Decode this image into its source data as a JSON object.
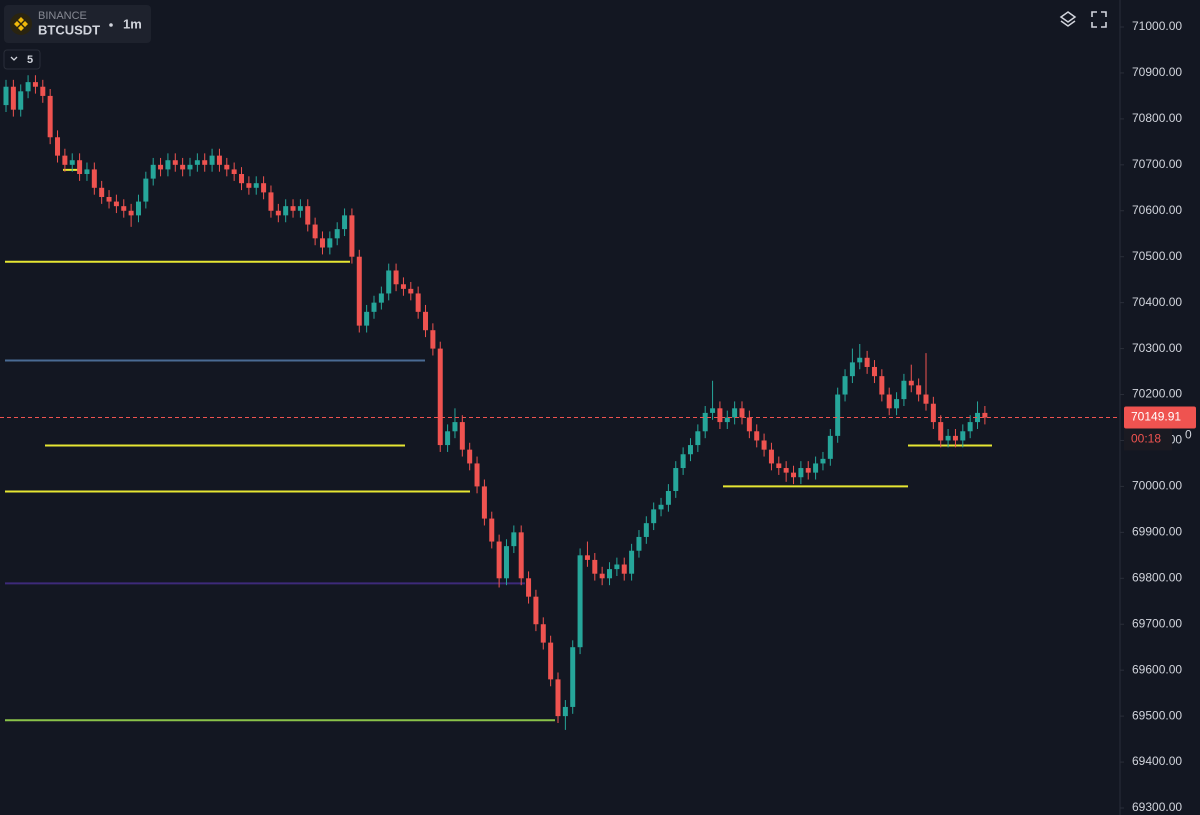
{
  "header": {
    "exchange": "BINANCE",
    "symbol": "BTCUSDT",
    "interval": "1m",
    "indicator_count": 5
  },
  "chart_data": {
    "type": "candlestick",
    "up_color": "#26a69a",
    "down_color": "#ef5350",
    "ylim": [
      69300,
      71000
    ],
    "yticks": [
      {
        "value": 71000,
        "label": "71000.00"
      },
      {
        "value": 70900,
        "label": "70900.00"
      },
      {
        "value": 70800,
        "label": "70800.00"
      },
      {
        "value": 70700,
        "label": "70700.00"
      },
      {
        "value": 70600,
        "label": "70600.00"
      },
      {
        "value": 70500,
        "label": "70500.00"
      },
      {
        "value": 70400,
        "label": "70400.00"
      },
      {
        "value": 70300,
        "label": "70300.00"
      },
      {
        "value": 70200,
        "label": "70200.00"
      },
      {
        "value": 70100,
        "label": "70100.00"
      },
      {
        "value": 70000,
        "label": "70000.00"
      },
      {
        "value": 69900,
        "label": "69900.00"
      },
      {
        "value": 69800,
        "label": "69800.00"
      },
      {
        "value": 69700,
        "label": "69700.00"
      },
      {
        "value": 69600,
        "label": "69600.00"
      },
      {
        "value": 69500,
        "label": "69500.00"
      },
      {
        "value": 69400,
        "label": "69400.00"
      },
      {
        "value": 69300,
        "label": "69300.00"
      }
    ],
    "open": [
      70830,
      70870,
      70820,
      70860,
      70880,
      70870,
      70850,
      70760,
      70720,
      70700,
      70710,
      70680,
      70690,
      70650,
      70630,
      70620,
      70610,
      70600,
      70590,
      70620,
      70670,
      70700,
      70690,
      70710,
      70700,
      70690,
      70700,
      70710,
      70700,
      70720,
      70700,
      70690,
      70680,
      70660,
      70650,
      70660,
      70640,
      70600,
      70590,
      70610,
      70600,
      70610,
      70570,
      70540,
      70520,
      70540,
      70560,
      70590,
      70500,
      70350,
      70380,
      70400,
      70420,
      70470,
      70440,
      70430,
      70420,
      70380,
      70340,
      70300,
      70090,
      70120,
      70140,
      70080,
      70050,
      70000,
      69930,
      69880,
      69800,
      69870,
      69900,
      69800,
      69760,
      69700,
      69660,
      69580,
      69500,
      69520,
      69650,
      69850,
      69840,
      69810,
      69800,
      69820,
      69830,
      69810,
      69860,
      69890,
      69920,
      69950,
      69960,
      69990,
      70040,
      70070,
      70090,
      70120,
      70160,
      70170,
      70140,
      70150,
      70170,
      70150,
      70120,
      70100,
      70080,
      70050,
      70040,
      70030,
      70020,
      70040,
      70030,
      70050,
      70060,
      70110,
      70200,
      70240,
      70270,
      70280,
      70260,
      70240,
      70200,
      70170,
      70190,
      70230,
      70220,
      70200,
      70180,
      70140,
      70100,
      70110,
      70100,
      70120,
      70140,
      70160
    ],
    "high": [
      70885,
      70885,
      70875,
      70895,
      70895,
      70885,
      70865,
      70775,
      70735,
      70725,
      70725,
      70705,
      70705,
      70665,
      70645,
      70635,
      70625,
      70615,
      70635,
      70685,
      70715,
      70715,
      70725,
      70725,
      70715,
      70715,
      70725,
      70725,
      70735,
      70735,
      70715,
      70705,
      70695,
      70675,
      70675,
      70675,
      70655,
      70615,
      70625,
      70625,
      70625,
      70625,
      70585,
      70555,
      70555,
      70575,
      70605,
      70605,
      70515,
      70395,
      70415,
      70435,
      70485,
      70485,
      70455,
      70445,
      70435,
      70395,
      70355,
      70315,
      70135,
      70170,
      70155,
      70095,
      70065,
      70015,
      69945,
      69895,
      69885,
      69915,
      69915,
      69815,
      69775,
      69715,
      69675,
      69595,
      69535,
      69665,
      69865,
      69880,
      69855,
      69825,
      69835,
      69845,
      69845,
      69875,
      69905,
      69935,
      69965,
      69975,
      70005,
      70055,
      70085,
      70105,
      70135,
      70175,
      70230,
      70185,
      70165,
      70185,
      70185,
      70165,
      70135,
      70115,
      70095,
      70065,
      70055,
      70045,
      70055,
      70055,
      70065,
      70075,
      70125,
      70215,
      70255,
      70300,
      70310,
      70295,
      70275,
      70255,
      70215,
      70205,
      70245,
      70265,
      70235,
      70290,
      70195,
      70155,
      70125,
      70125,
      70135,
      70155,
      70185,
      70175
    ],
    "low": [
      70815,
      70805,
      70805,
      70845,
      70855,
      70835,
      70745,
      70705,
      70685,
      70685,
      70665,
      70665,
      70635,
      70615,
      70605,
      70595,
      70585,
      70565,
      70575,
      70605,
      70655,
      70675,
      70675,
      70685,
      70675,
      70675,
      70685,
      70685,
      70685,
      70685,
      70675,
      70665,
      70645,
      70635,
      70635,
      70625,
      70585,
      70575,
      70575,
      70585,
      70585,
      70555,
      70525,
      70505,
      70505,
      70525,
      70545,
      70485,
      70335,
      70335,
      70365,
      70385,
      70405,
      70425,
      70415,
      70405,
      70365,
      70325,
      70285,
      70075,
      70075,
      70105,
      70065,
      70035,
      69985,
      69915,
      69865,
      69780,
      69785,
      69855,
      69785,
      69745,
      69685,
      69645,
      69565,
      69485,
      69470,
      69505,
      69635,
      69825,
      69795,
      69785,
      69785,
      69805,
      69795,
      69795,
      69845,
      69875,
      69905,
      69935,
      69945,
      69975,
      70025,
      70055,
      70075,
      70105,
      70145,
      70125,
      70125,
      70135,
      70135,
      70105,
      70085,
      70065,
      70035,
      70025,
      70010,
      70005,
      70005,
      70015,
      70015,
      70035,
      70045,
      70095,
      70185,
      70225,
      70255,
      70245,
      70225,
      70185,
      70155,
      70155,
      70175,
      70205,
      70185,
      70165,
      70125,
      70085,
      70085,
      70085,
      70085,
      70105,
      70125,
      70135
    ],
    "close": [
      70870,
      70820,
      70860,
      70880,
      70870,
      70850,
      70760,
      70720,
      70700,
      70710,
      70680,
      70690,
      70650,
      70630,
      70620,
      70610,
      70600,
      70590,
      70620,
      70670,
      70700,
      70690,
      70710,
      70700,
      70690,
      70700,
      70710,
      70700,
      70720,
      70700,
      70690,
      70680,
      70660,
      70650,
      70660,
      70640,
      70600,
      70590,
      70610,
      70600,
      70610,
      70570,
      70540,
      70520,
      70540,
      70560,
      70590,
      70500,
      70350,
      70380,
      70400,
      70420,
      70470,
      70440,
      70430,
      70420,
      70380,
      70340,
      70300,
      70090,
      70120,
      70140,
      70080,
      70050,
      70000,
      69930,
      69880,
      69800,
      69870,
      69900,
      69800,
      69760,
      69700,
      69660,
      69580,
      69500,
      69520,
      69650,
      69850,
      69840,
      69810,
      69800,
      69820,
      69830,
      69810,
      69860,
      69890,
      69920,
      69950,
      69960,
      69990,
      70040,
      70070,
      70090,
      70120,
      70160,
      70170,
      70140,
      70150,
      70170,
      70150,
      70120,
      70100,
      70080,
      70050,
      70040,
      70030,
      70020,
      70040,
      70030,
      70050,
      70060,
      70110,
      70200,
      70240,
      70270,
      70280,
      70260,
      70240,
      70200,
      70170,
      70190,
      70230,
      70220,
      70200,
      70180,
      70140,
      70100,
      70110,
      70100,
      70120,
      70140,
      70160,
      70149.91
    ],
    "levels": [
      {
        "value": 70489,
        "color": "#e6e633"
      },
      {
        "value": 70274,
        "color": "#4a6b94"
      },
      {
        "value": 70089,
        "color": "#e6e633"
      },
      {
        "value": 69989,
        "color": "#e6e633"
      },
      {
        "value": 69789,
        "color": "#3d2a7a"
      },
      {
        "value": 69491,
        "color": "#8bc34a"
      },
      {
        "value": 70000,
        "color": "#e6e633"
      },
      {
        "value": 70089,
        "color": "#e6e633"
      },
      {
        "value": 70689,
        "color": "#e6e633"
      }
    ],
    "last_price": 70149.91,
    "last_price_color": "#ef5350",
    "countdown": "00:18",
    "extra_label": "0"
  }
}
